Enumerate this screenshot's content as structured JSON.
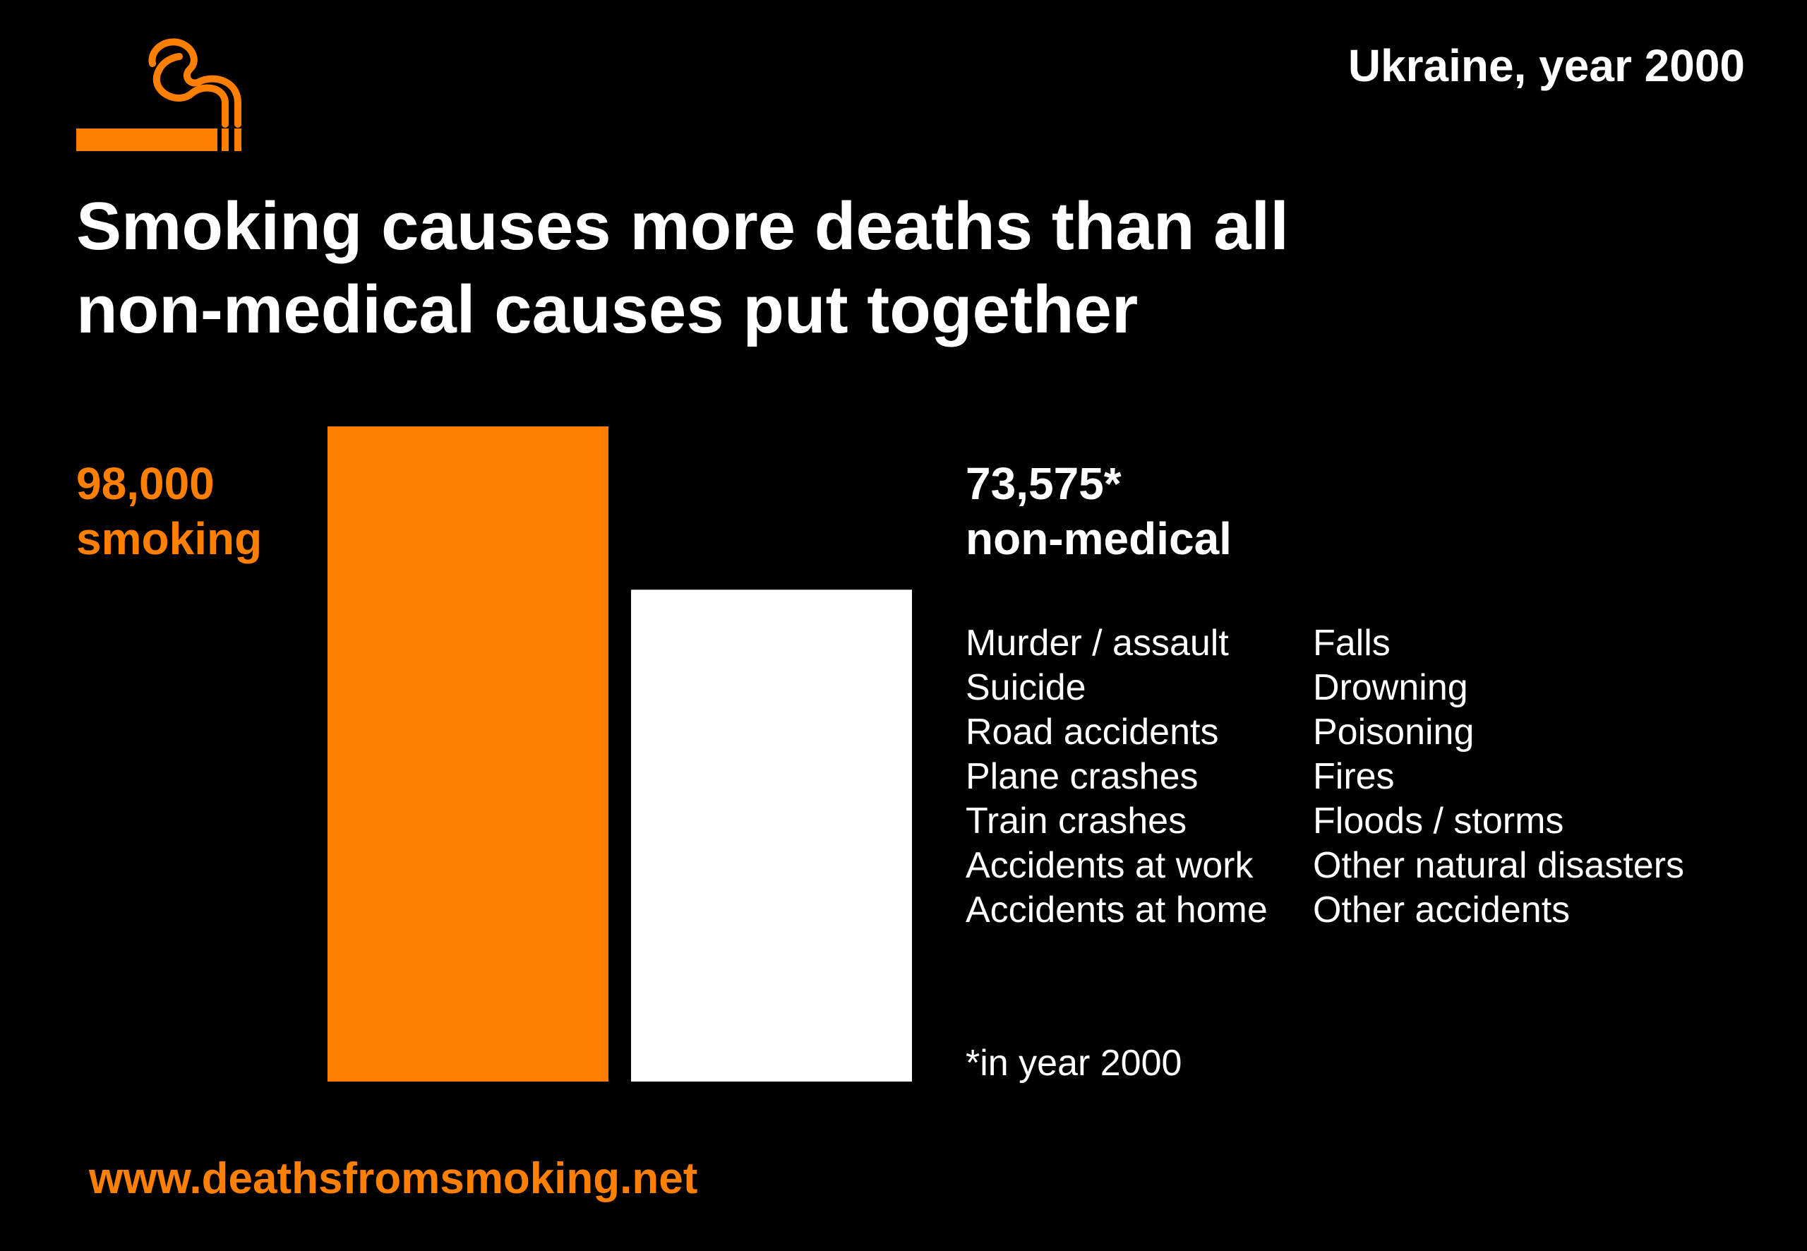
{
  "header": {
    "region": "Ukraine, year 2000",
    "title_line1": "Smoking causes more deaths than all",
    "title_line2": "non-medical causes put together"
  },
  "colors": {
    "accent": "#ff8000",
    "background": "#000000",
    "text": "#ffffff"
  },
  "icons": {
    "logo": "cigarette-icon"
  },
  "chart_data": {
    "type": "bar",
    "categories": [
      "smoking",
      "non-medical"
    ],
    "values": [
      98000,
      73575
    ],
    "value_labels": [
      "98,000",
      "73,575*"
    ],
    "colors": [
      "#ff8000",
      "#ffffff"
    ],
    "ylim": [
      0,
      98000
    ],
    "grid": false,
    "title": "",
    "xlabel": "",
    "ylabel": ""
  },
  "causes": {
    "left": [
      "Murder / assault",
      "Suicide",
      "Road accidents",
      "Plane crashes",
      "Train crashes",
      "Accidents at work",
      "Accidents at home"
    ],
    "right": [
      "Falls",
      "Drowning",
      "Poisoning",
      "Fires",
      "Floods / storms",
      "Other natural disasters",
      "Other accidents"
    ]
  },
  "footnote": "*in year 2000",
  "footer": {
    "website": "www.deathsfromsmoking.net"
  }
}
